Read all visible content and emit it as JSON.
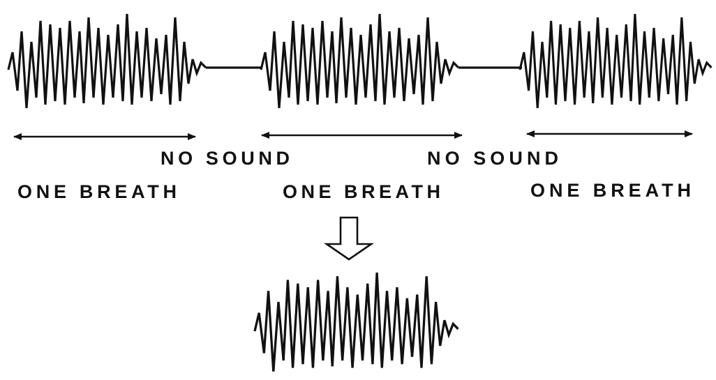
{
  "gaps": [
    {
      "label": "NO SOUND"
    },
    {
      "label": "NO SOUND"
    }
  ],
  "breaths": [
    {
      "label": "ONE BREATH"
    },
    {
      "label": "ONE BREATH"
    },
    {
      "label": "ONE BREATH"
    }
  ]
}
